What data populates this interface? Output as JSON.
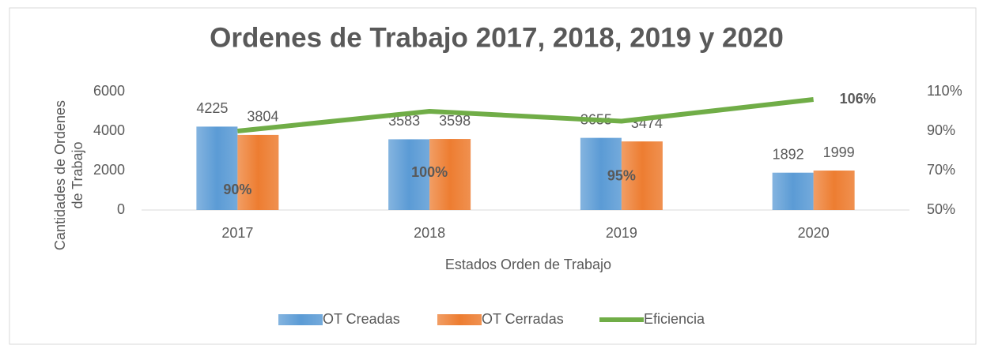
{
  "chart_data": {
    "type": "bar",
    "title": "Ordenes de Trabajo 2017, 2018, 2019 y 2020",
    "x_label": "Estados Orden de Trabajo",
    "y_label": "Cantidades de Ordenes de Trabajo",
    "categories": [
      "2017",
      "2018",
      "2019",
      "2020"
    ],
    "series": [
      {
        "name": "OT Creadas",
        "color": "#5b9bd5",
        "values": [
          4225,
          3583,
          3655,
          1892
        ]
      },
      {
        "name": "OT Cerradas",
        "color": "#ed7d31",
        "values": [
          3804,
          3598,
          3474,
          1999
        ]
      },
      {
        "name": "Eficiencia",
        "color": "#70ad47",
        "type": "line",
        "axis": "y2",
        "values": [
          90,
          100,
          95,
          106
        ],
        "value_labels": [
          "90%",
          "100%",
          "95%",
          "106%"
        ]
      }
    ],
    "ylim": [
      0,
      6000
    ],
    "yticks": [
      0,
      2000,
      4000,
      6000
    ],
    "y2lim": [
      50,
      110
    ],
    "y2ticks": [
      {
        "value": 50,
        "label": "50%"
      },
      {
        "value": 70,
        "label": "70%"
      },
      {
        "value": 90,
        "label": "90%"
      },
      {
        "value": 110,
        "label": "110%"
      }
    ],
    "grid": false,
    "legend": "bottom"
  }
}
